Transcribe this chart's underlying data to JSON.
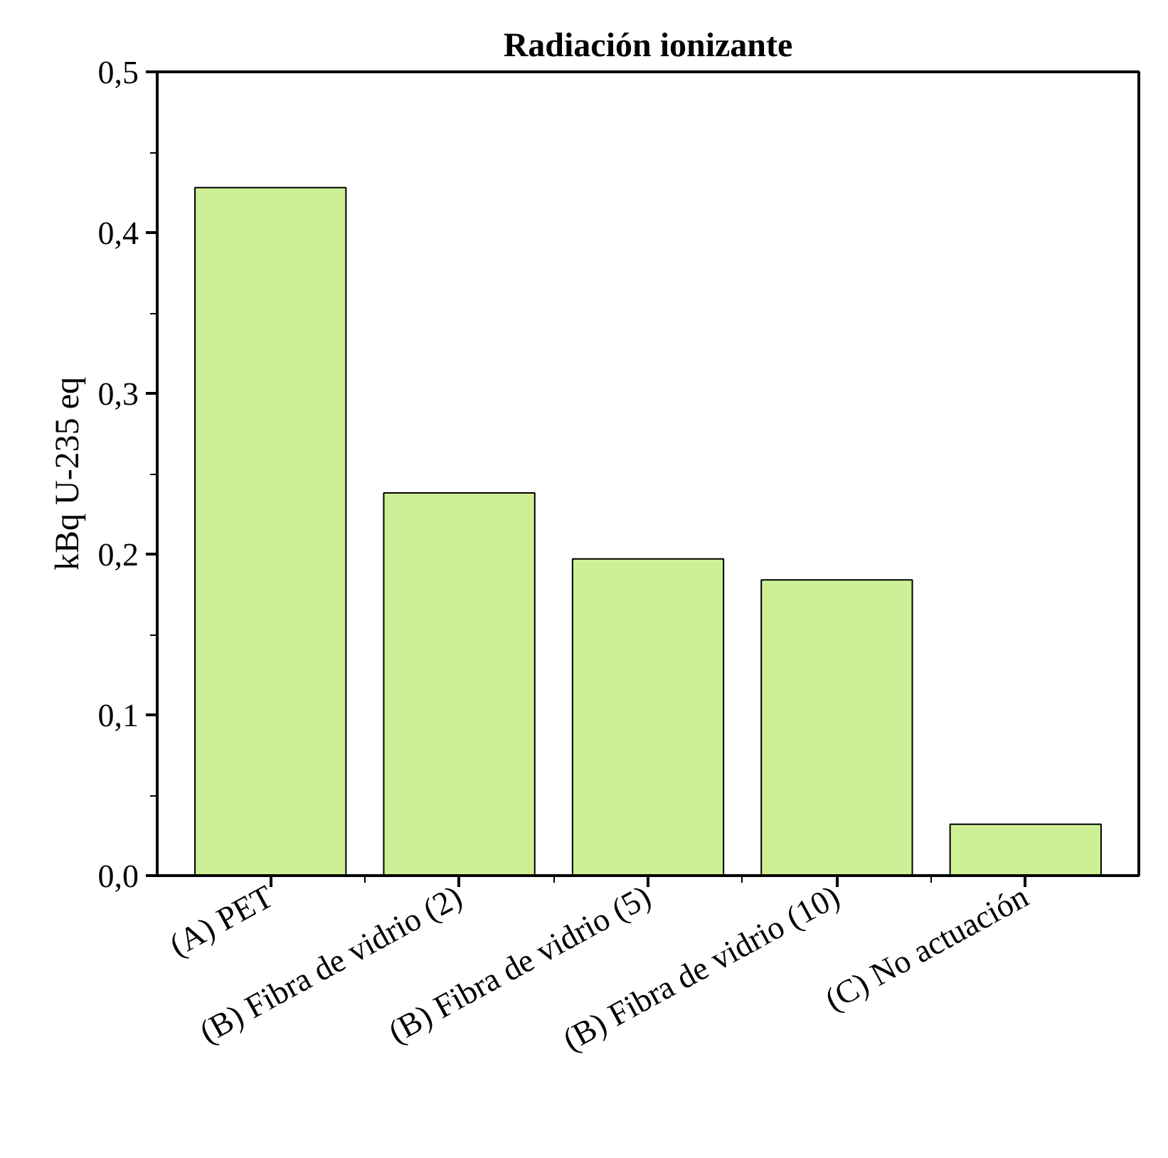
{
  "chart_data": {
    "type": "bar",
    "title": "Radiación ionizante",
    "ylabel": "kBq U-235 eq",
    "categories": [
      "(A) PET",
      "(B) Fibra de vidrio (2)",
      "(B) Fibra de vidrio (5)",
      "(B) Fibra de vidrio (10)",
      "(C) No actuación"
    ],
    "values": [
      0.428,
      0.238,
      0.197,
      0.184,
      0.032
    ],
    "color": "#cdf096",
    "ylim": [
      0,
      0.5
    ],
    "yticks": [
      {
        "value": 0,
        "label": "0,0"
      },
      {
        "value": 0.1,
        "label": "0,1"
      },
      {
        "value": 0.2,
        "label": "0,2"
      },
      {
        "value": 0.3,
        "label": "0,3"
      },
      {
        "value": 0.4,
        "label": "0,4"
      },
      {
        "value": 0.5,
        "label": "0,5"
      }
    ],
    "grid": false
  }
}
